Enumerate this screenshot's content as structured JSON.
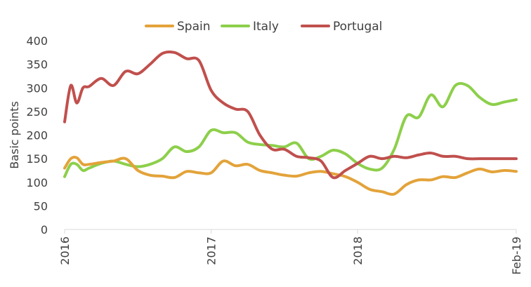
{
  "chart_data": {
    "type": "line",
    "ylabel": "Basic points",
    "ylim": [
      0,
      400
    ],
    "yticks": [
      0,
      50,
      100,
      150,
      200,
      250,
      300,
      350,
      400
    ],
    "xlim": [
      2016.0,
      2019.083
    ],
    "xticks": [
      {
        "label": "2016",
        "x": 2016.0
      },
      {
        "label": "2017",
        "x": 2017.0
      },
      {
        "label": "2018",
        "x": 2018.0
      },
      {
        "label": "Feb-19",
        "x": 2019.083
      }
    ],
    "legend_position": "top",
    "grid": false,
    "series": [
      {
        "name": "Spain",
        "color": "#E3A33A",
        "x": [
          2016.0,
          2016.042,
          2016.083,
          2016.125,
          2016.167,
          2016.25,
          2016.333,
          2016.417,
          2016.5,
          2016.583,
          2016.667,
          2016.75,
          2016.833,
          2016.917,
          2017.0,
          2017.083,
          2017.167,
          2017.25,
          2017.333,
          2017.417,
          2017.5,
          2017.583,
          2017.667,
          2017.75,
          2017.833,
          2017.917,
          2018.0,
          2018.083,
          2018.167,
          2018.25,
          2018.333,
          2018.417,
          2018.5,
          2018.583,
          2018.667,
          2018.75,
          2018.833,
          2018.917,
          2019.0,
          2019.083
        ],
        "values": [
          130,
          150,
          152,
          138,
          138,
          142,
          145,
          150,
          125,
          115,
          113,
          110,
          123,
          120,
          120,
          145,
          135,
          138,
          125,
          120,
          115,
          113,
          120,
          123,
          118,
          112,
          100,
          85,
          80,
          75,
          95,
          105,
          105,
          112,
          110,
          120,
          128,
          122,
          125,
          123
        ]
      },
      {
        "name": "Italy",
        "color": "#8DCF4B",
        "x": [
          2016.0,
          2016.042,
          2016.083,
          2016.125,
          2016.167,
          2016.25,
          2016.333,
          2016.417,
          2016.5,
          2016.583,
          2016.667,
          2016.75,
          2016.833,
          2016.917,
          2017.0,
          2017.083,
          2017.167,
          2017.25,
          2017.333,
          2017.417,
          2017.5,
          2017.583,
          2017.667,
          2017.75,
          2017.833,
          2017.917,
          2018.0,
          2018.083,
          2018.167,
          2018.25,
          2018.333,
          2018.417,
          2018.5,
          2018.583,
          2018.667,
          2018.75,
          2018.833,
          2018.917,
          2019.0,
          2019.083
        ],
        "values": [
          112,
          138,
          138,
          125,
          130,
          140,
          145,
          138,
          133,
          138,
          150,
          175,
          165,
          175,
          210,
          205,
          205,
          185,
          180,
          178,
          175,
          183,
          150,
          155,
          168,
          160,
          140,
          128,
          130,
          170,
          240,
          238,
          285,
          260,
          305,
          305,
          280,
          265,
          270,
          275
        ]
      },
      {
        "name": "Portugal",
        "color": "#C0504D",
        "x": [
          2016.0,
          2016.042,
          2016.083,
          2016.125,
          2016.167,
          2016.25,
          2016.333,
          2016.417,
          2016.5,
          2016.583,
          2016.667,
          2016.75,
          2016.833,
          2016.917,
          2017.0,
          2017.083,
          2017.167,
          2017.25,
          2017.333,
          2017.417,
          2017.5,
          2017.583,
          2017.667,
          2017.75,
          2017.833,
          2017.917,
          2018.0,
          2018.083,
          2018.167,
          2018.25,
          2018.333,
          2018.417,
          2018.5,
          2018.583,
          2018.667,
          2018.75,
          2018.833,
          2018.917,
          2019.0,
          2019.083
        ],
        "values": [
          228,
          305,
          268,
          300,
          303,
          320,
          305,
          335,
          330,
          350,
          373,
          375,
          362,
          358,
          295,
          268,
          255,
          250,
          200,
          170,
          170,
          155,
          152,
          145,
          110,
          125,
          140,
          155,
          150,
          155,
          152,
          158,
          162,
          155,
          155,
          150,
          150,
          150,
          150,
          150
        ]
      }
    ]
  }
}
